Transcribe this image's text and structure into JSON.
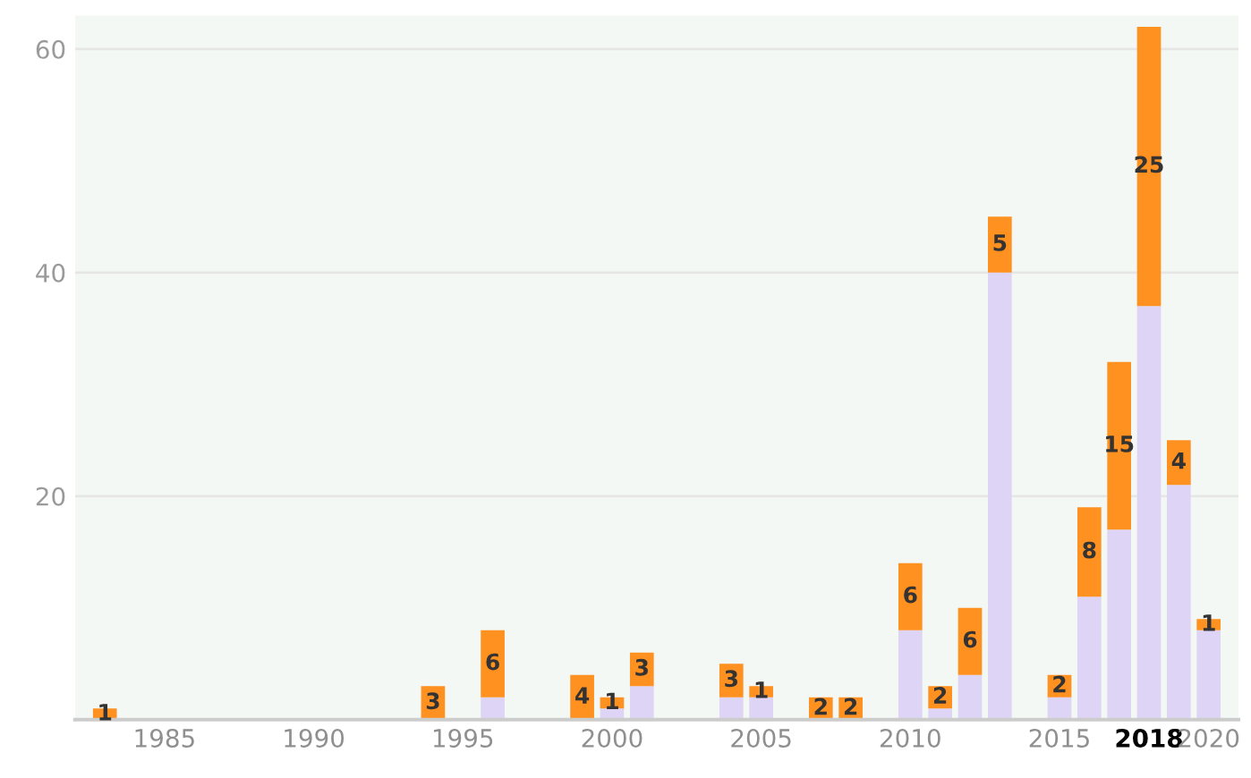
{
  "chart_data": {
    "type": "bar",
    "stacked": true,
    "x": [
      1983,
      1994,
      1996,
      1999,
      2000,
      2001,
      2004,
      2005,
      2007,
      2008,
      2010,
      2011,
      2012,
      2013,
      2015,
      2016,
      2017,
      2018,
      2019,
      2020
    ],
    "series": [
      {
        "color": "#ddd4f6",
        "values": [
          0,
          0,
          2,
          0,
          1,
          3,
          2,
          2,
          0,
          0,
          8,
          1,
          4,
          40,
          2,
          11,
          17,
          37,
          21,
          8
        ]
      },
      {
        "color": "#ff9120",
        "values": [
          1,
          3,
          6,
          4,
          1,
          3,
          3,
          1,
          2,
          2,
          6,
          2,
          6,
          5,
          2,
          8,
          15,
          25,
          4,
          1
        ],
        "value_labels": [
          "1",
          "3",
          "6",
          "4",
          "1",
          "3",
          "3",
          "1",
          "2",
          "2",
          "6",
          "2",
          "6",
          "5",
          "2",
          "8",
          "15",
          "25",
          "4",
          "1"
        ]
      }
    ],
    "xlim": [
      1982,
      2021
    ],
    "xticks": [
      1985,
      1990,
      1995,
      2000,
      2005,
      2010,
      2015,
      {
        "value": 2018,
        "label": "2018"
      },
      2020
    ],
    "ylim": [
      0,
      63
    ],
    "yticks": [
      20,
      40,
      60
    ],
    "grid": "y",
    "legend": false
  }
}
